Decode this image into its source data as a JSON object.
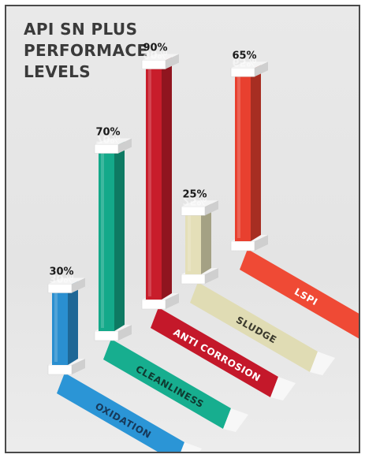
{
  "title_lines": [
    "API SN PLUS",
    "PERFORMACE",
    "LEVELS"
  ],
  "chart_data": {
    "type": "bar",
    "title": "API SN PLUS PERFORMACE LEVELS",
    "categories": [
      "OXIDATION",
      "CLEANLINESS",
      "ANTI CORROSION",
      "SLUDGE",
      "LSPI"
    ],
    "values": [
      30,
      70,
      90,
      25,
      65
    ],
    "value_labels": [
      "30%",
      "70%",
      "90%",
      "25%",
      "65%"
    ],
    "value_unit": "%",
    "ylim": [
      0,
      100
    ],
    "grid": false,
    "legend": "none",
    "colors": [
      "#2a8fd0",
      "#14a98a",
      "#c81d2b",
      "#e4dfb8",
      "#e8402f"
    ],
    "lane_colors": [
      "#2b95d6",
      "#17ae8f",
      "#c4182a",
      "#e0dcb4",
      "#ef4a35"
    ],
    "lane_text_colors": [
      "#17395a",
      "#0f3a30",
      "#ffffff",
      "#3b3a2e",
      "#ffffff"
    ]
  }
}
